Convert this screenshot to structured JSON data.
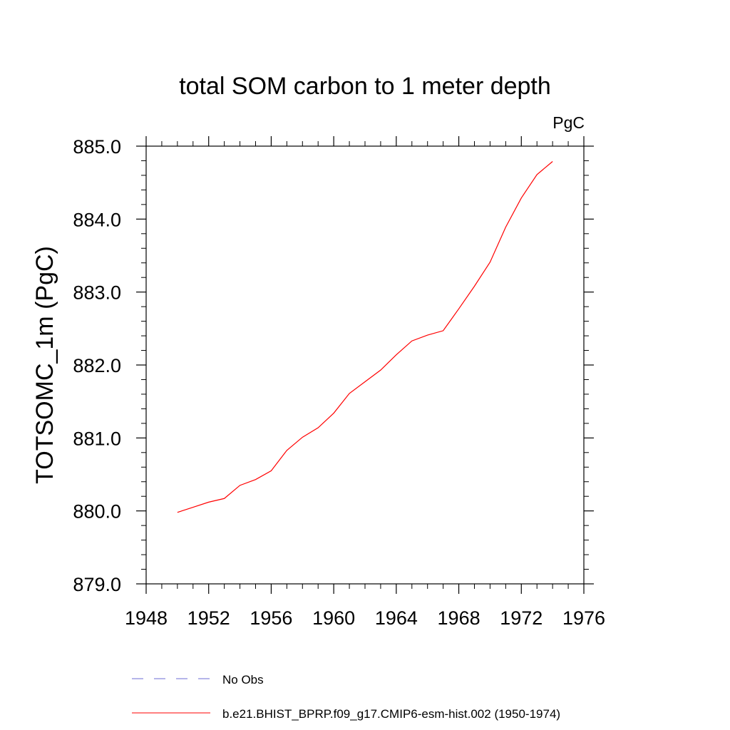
{
  "chart_data": {
    "type": "line",
    "title": "total SOM carbon to 1 meter depth",
    "units_label": "PgC",
    "xlabel": "",
    "ylabel": "TOTSOMC_1m  (PgC)",
    "xlim": [
      1948,
      1976
    ],
    "ylim": [
      879.0,
      885.0
    ],
    "x_ticks": [
      1948,
      1952,
      1956,
      1960,
      1964,
      1968,
      1972,
      1976
    ],
    "x_tick_labels": [
      "1948",
      "1952",
      "1956",
      "1960",
      "1964",
      "1968",
      "1972",
      "1976"
    ],
    "y_ticks": [
      879.0,
      880.0,
      881.0,
      882.0,
      883.0,
      884.0,
      885.0
    ],
    "y_tick_labels": [
      "879.0",
      "880.0",
      "881.0",
      "882.0",
      "883.0",
      "884.0",
      "885.0"
    ],
    "grid": false,
    "legend_position": "bottom",
    "series": [
      {
        "name": "b.e21.BHIST_BPRP.f09_g17.CMIP6-esm-hist.002 (1950-1974)",
        "color": "#ff0000",
        "style": "solid",
        "x": [
          1950,
          1951,
          1952,
          1953,
          1954,
          1955,
          1956,
          1957,
          1958,
          1959,
          1960,
          1961,
          1962,
          1963,
          1964,
          1965,
          1966,
          1967,
          1968,
          1969,
          1970,
          1971,
          1972,
          1973,
          1974
        ],
        "y": [
          879.98,
          880.05,
          880.12,
          880.17,
          880.35,
          880.43,
          880.55,
          880.83,
          881.01,
          881.14,
          881.34,
          881.61,
          881.77,
          881.93,
          882.14,
          882.33,
          882.41,
          882.47,
          882.77,
          883.08,
          883.41,
          883.89,
          884.29,
          884.61,
          884.79
        ]
      }
    ],
    "legend": [
      {
        "label": "No Obs",
        "color": "#6b6bd6",
        "style": "dashed"
      },
      {
        "label": "b.e21.BHIST_BPRP.f09_g17.CMIP6-esm-hist.002 (1950-1974)",
        "color": "#ff0000",
        "style": "solid"
      }
    ]
  }
}
